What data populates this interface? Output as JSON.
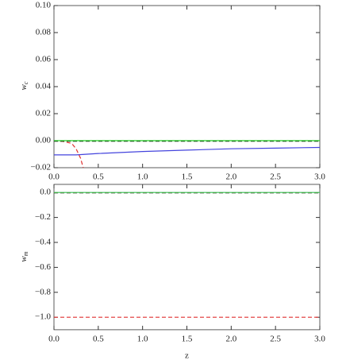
{
  "chart_data": [
    {
      "type": "line",
      "xlabel": "z",
      "ylabel": "w",
      "ylabel_subscript": "c",
      "xlim": [
        0,
        3
      ],
      "ylim": [
        -0.02,
        0.1
      ],
      "xticks": [
        {
          "value": 0,
          "label": "0.0"
        },
        0.5,
        {
          "value": 1,
          "label": "1.0"
        },
        1.5,
        {
          "value": 2,
          "label": "2.0"
        },
        2.5,
        {
          "value": 3,
          "label": "3.0"
        }
      ],
      "yticks": [
        {
          "value": -0.02,
          "label": "−0.02"
        },
        {
          "value": 0,
          "label": "0.00"
        },
        0.02,
        0.04,
        0.06,
        0.08,
        {
          "value": 0.1,
          "label": "0.10"
        }
      ],
      "series": [
        {
          "color": "#4444dd",
          "dash": false,
          "x": [
            0,
            0.25,
            0.5,
            1,
            1.5,
            2,
            2.5,
            3
          ],
          "values": [
            -0.0105,
            -0.0105,
            -0.0095,
            -0.008,
            -0.007,
            -0.006,
            -0.0055,
            -0.005
          ]
        },
        {
          "color": "#e03030",
          "dash": true,
          "x": [
            0,
            0.1,
            0.2,
            0.25,
            0.3,
            0.33
          ],
          "values": [
            -0.0002,
            -0.0005,
            -0.002,
            -0.006,
            -0.013,
            -0.02
          ]
        },
        {
          "color": "#111111",
          "dash": true,
          "x": [
            0,
            3
          ],
          "values": [
            -0.0004,
            -0.0004
          ]
        },
        {
          "color": "#22cc22",
          "dash": false,
          "x": [
            0,
            3
          ],
          "values": [
            0,
            0
          ]
        }
      ]
    },
    {
      "type": "line",
      "xlabel": "z",
      "ylabel": "w",
      "ylabel_subscript": "m",
      "xlim": [
        0,
        3
      ],
      "ylim": [
        -1.1,
        0.065
      ],
      "xticks": [
        {
          "value": 0,
          "label": "0.0"
        },
        0.5,
        {
          "value": 1,
          "label": "1.0"
        },
        1.5,
        {
          "value": 2,
          "label": "2.0"
        },
        2.5,
        {
          "value": 3,
          "label": "3.0"
        }
      ],
      "yticks": [
        {
          "value": -1,
          "label": "−1.0"
        },
        {
          "value": -0.8,
          "label": "−0.8"
        },
        {
          "value": -0.6,
          "label": "−0.6"
        },
        {
          "value": -0.4,
          "label": "−0.4"
        },
        {
          "value": -0.2,
          "label": "−0.2"
        },
        {
          "value": 0,
          "label": "0.0"
        }
      ],
      "series": [
        {
          "color": "#e03030",
          "dash": true,
          "x": [
            0,
            3
          ],
          "values": [
            -1,
            -1
          ]
        },
        {
          "color": "#4444dd",
          "dash": false,
          "x": [
            0,
            3
          ],
          "values": [
            0,
            0
          ]
        },
        {
          "color": "#111111",
          "dash": true,
          "x": [
            0,
            3
          ],
          "values": [
            -0.003,
            -0.003
          ]
        },
        {
          "color": "#55dd55",
          "dash": false,
          "x": [
            0,
            3
          ],
          "values": [
            0,
            0
          ]
        }
      ]
    }
  ]
}
